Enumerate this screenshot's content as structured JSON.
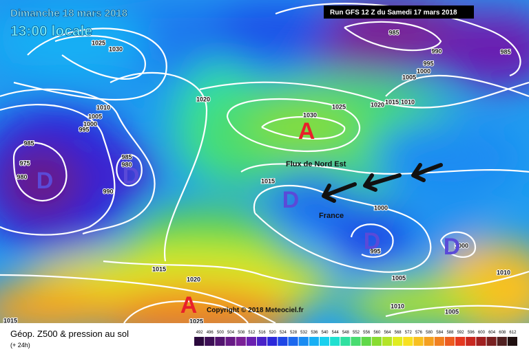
{
  "header": {
    "date": "Dimanche 18 mars 2018",
    "time": "13:00 locale",
    "run": "Run GFS 12 Z du Samedi 17 mars 2018"
  },
  "copyright": "Copyright © 2018 Meteociel.fr",
  "caption": {
    "title": "Géop. Z500 & pression au sol",
    "subtitle": "(+ 24h)"
  },
  "annotations": {
    "flow": "Flux de Nord Est",
    "country": "France"
  },
  "centers": [
    "A",
    "D",
    "D",
    "D",
    "D",
    "D",
    "A"
  ],
  "pressure_labels": [
    1030,
    1025,
    1020,
    1010,
    1005,
    1000,
    995,
    985,
    975,
    980,
    985,
    980,
    990,
    1030,
    1025,
    1020,
    1015,
    1010,
    985,
    990,
    985,
    995,
    1000,
    1005,
    1015,
    1000,
    995,
    1005,
    1010,
    1005,
    1000,
    1010,
    1015,
    1020,
    1025,
    1015
  ],
  "legend": [
    {
      "label": "492",
      "color": "#2b0a3d"
    },
    {
      "label": "496",
      "color": "#3d0f55"
    },
    {
      "label": "500",
      "color": "#52146e"
    },
    {
      "label": "504",
      "color": "#671a85"
    },
    {
      "label": "508",
      "color": "#7a2096"
    },
    {
      "label": "512",
      "color": "#6a1fb0"
    },
    {
      "label": "516",
      "color": "#4a22c8"
    },
    {
      "label": "520",
      "color": "#2b28da"
    },
    {
      "label": "524",
      "color": "#1e46e6"
    },
    {
      "label": "528",
      "color": "#1c68ee"
    },
    {
      "label": "532",
      "color": "#1a8cf2"
    },
    {
      "label": "536",
      "color": "#18b0f4"
    },
    {
      "label": "540",
      "color": "#1ad0ee"
    },
    {
      "label": "544",
      "color": "#20e0d0"
    },
    {
      "label": "548",
      "color": "#30e0a0"
    },
    {
      "label": "552",
      "color": "#48dc70"
    },
    {
      "label": "556",
      "color": "#60d848"
    },
    {
      "label": "560",
      "color": "#88dc30"
    },
    {
      "label": "564",
      "color": "#b4e428"
    },
    {
      "label": "568",
      "color": "#e0ec20"
    },
    {
      "label": "572",
      "color": "#f8e020"
    },
    {
      "label": "576",
      "color": "#f8c020"
    },
    {
      "label": "580",
      "color": "#f4a020"
    },
    {
      "label": "584",
      "color": "#f08020"
    },
    {
      "label": "588",
      "color": "#ec5c20"
    },
    {
      "label": "592",
      "color": "#e43820"
    },
    {
      "label": "596",
      "color": "#c82820"
    },
    {
      "label": "600",
      "color": "#a02020"
    },
    {
      "label": "604",
      "color": "#782020"
    },
    {
      "label": "608",
      "color": "#502020"
    },
    {
      "label": "612",
      "color": "#201010"
    }
  ]
}
